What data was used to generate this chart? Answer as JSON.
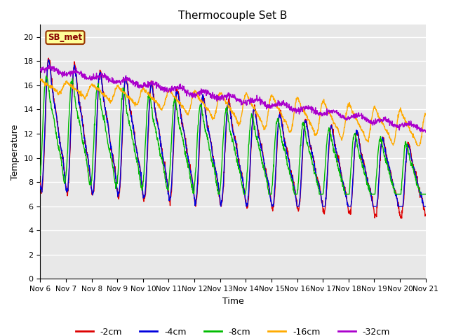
{
  "title": "Thermocouple Set B",
  "xlabel": "Time",
  "ylabel": "Temperature",
  "ylim": [
    0,
    21
  ],
  "yticks": [
    0,
    2,
    4,
    6,
    8,
    10,
    12,
    14,
    16,
    18,
    20
  ],
  "colors": {
    "-2cm": "#dd0000",
    "-4cm": "#0000dd",
    "-8cm": "#00bb00",
    "-16cm": "#ffaa00",
    "-32cm": "#aa00cc"
  },
  "background_color": "#e8e8e8",
  "annotation_text": "SB_met",
  "annotation_bg": "#ffff99",
  "annotation_border": "#993300",
  "n_points": 1440
}
